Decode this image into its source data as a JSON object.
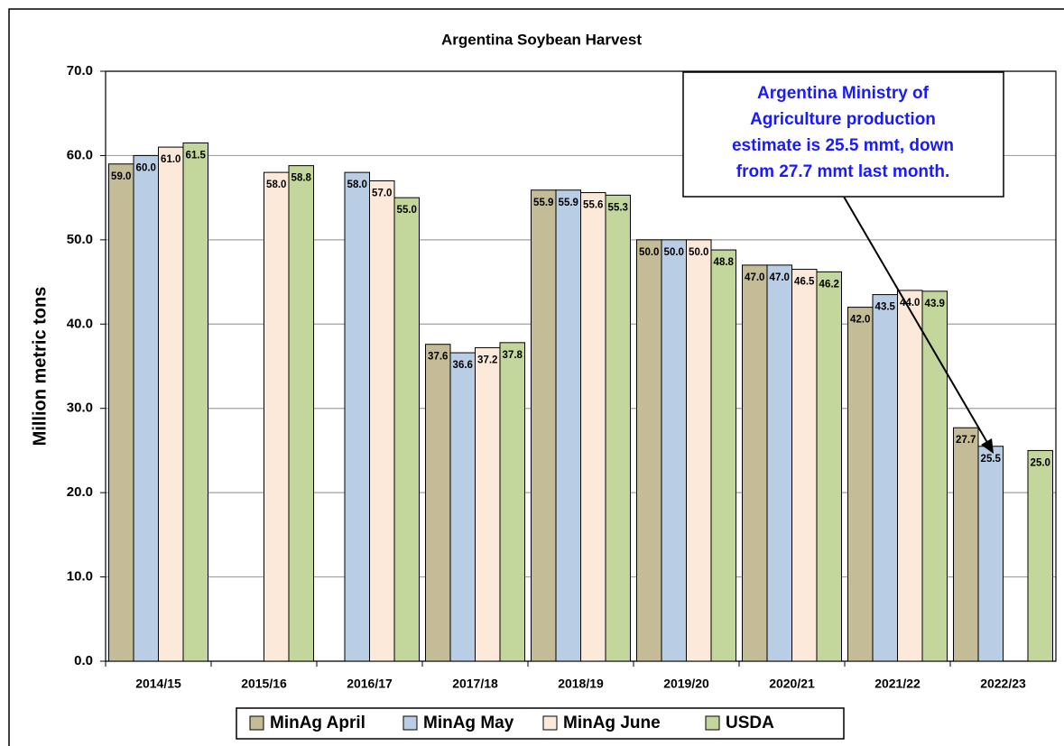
{
  "chart_data": {
    "type": "bar",
    "title": "Argentina Soybean Harvest",
    "y_label": "Million metric tons",
    "categories": [
      "2014/15",
      "2015/16",
      "2016/17",
      "2017/18",
      "2018/19",
      "2019/20",
      "2020/21",
      "2021/22",
      "2022/23"
    ],
    "series": [
      {
        "name": "MinAg April",
        "color": "#c4bc96",
        "values": [
          59.0,
          null,
          null,
          37.6,
          55.9,
          50.0,
          47.0,
          42.0,
          27.7
        ],
        "value_labels": [
          "59.0",
          null,
          null,
          "37.6",
          "55.9",
          "50.0",
          "47.0",
          "42.0",
          "27.7"
        ]
      },
      {
        "name": "MinAg May",
        "color": "#b9cde5",
        "values": [
          60.0,
          null,
          58.0,
          36.6,
          55.9,
          50.0,
          47.0,
          43.5,
          25.5
        ],
        "value_labels": [
          "60.0",
          null,
          "58.0",
          "36.6",
          "55.9",
          "50.0",
          "47.0",
          "43.5",
          "25.5"
        ]
      },
      {
        "name": "MinAg June",
        "color": "#fde9d9",
        "values": [
          61.0,
          58.0,
          57.0,
          37.2,
          55.6,
          50.0,
          46.5,
          44.0,
          null
        ],
        "value_labels": [
          "61.0",
          "58.0",
          "57.0",
          "37.2",
          "55.6",
          "50.0",
          "46.5",
          "44.0",
          null
        ]
      },
      {
        "name": "USDA",
        "color": "#c3d69b",
        "values": [
          61.5,
          58.8,
          55.0,
          37.8,
          55.3,
          48.8,
          46.2,
          43.9,
          25.0
        ],
        "value_labels": [
          "61.5",
          "58.8",
          "55.0",
          "37.8",
          "55.3",
          "48.8",
          "46.2",
          "43.9",
          "25.0"
        ]
      }
    ],
    "ylim": [
      0,
      70
    ],
    "yticks": [
      {
        "value": 0,
        "label": "0.0"
      },
      {
        "value": 10,
        "label": "10.0"
      },
      {
        "value": 20,
        "label": "20.0"
      },
      {
        "value": 30,
        "label": "30.0"
      },
      {
        "value": 40,
        "label": "40.0"
      },
      {
        "value": 50,
        "label": "50.0"
      },
      {
        "value": 60,
        "label": "60.0"
      },
      {
        "value": 70,
        "label": "70.0"
      }
    ],
    "grid": true,
    "legend": "bottom",
    "annotation": [
      "Argentina Ministry of",
      "Agriculture production",
      "estimate is 25.5 mmt, down",
      "from 27.7 mmt last month."
    ]
  }
}
